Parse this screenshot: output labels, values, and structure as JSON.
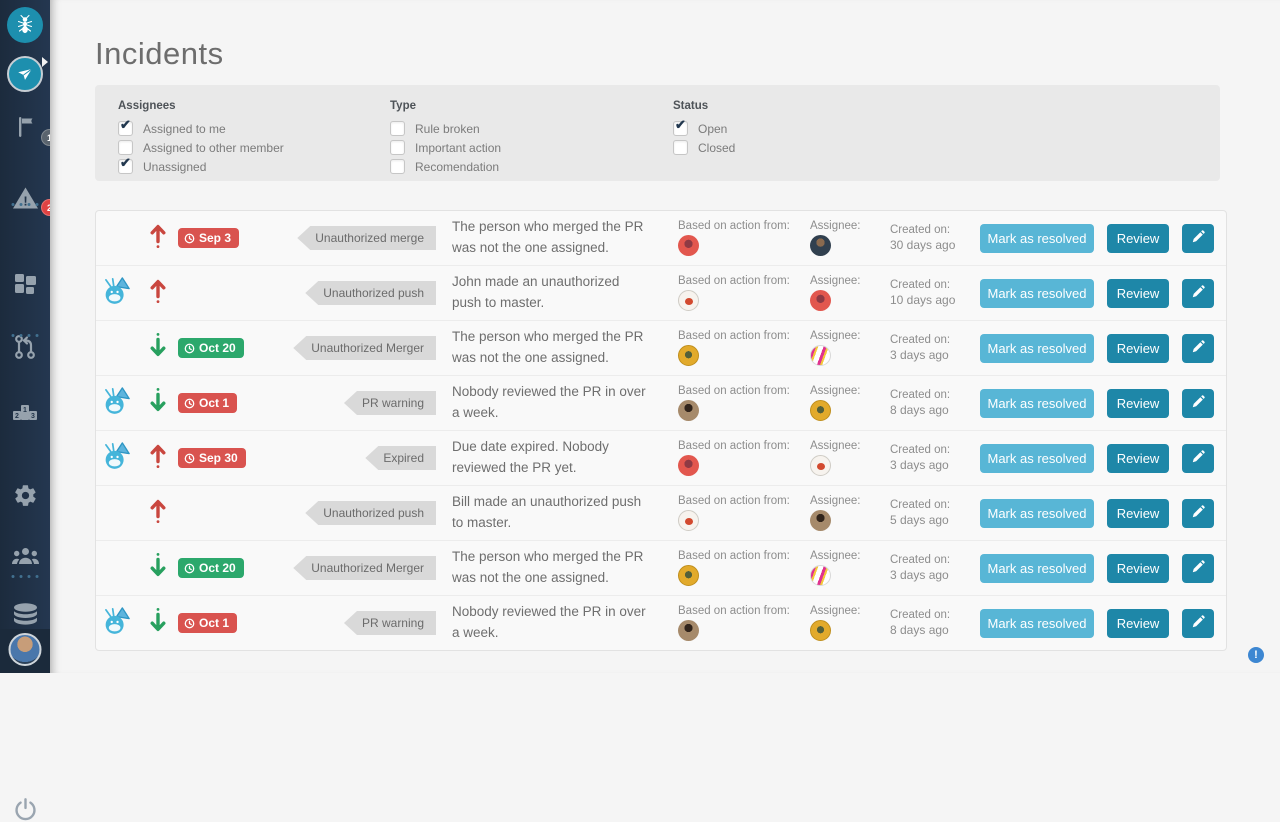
{
  "page_title": "Incidents",
  "colors": {
    "accent_teal": "#1e87a8",
    "button_light_blue": "#58b6d6",
    "badge_red": "#d9534f",
    "badge_green": "#2ca86c",
    "sidebar_bg": "#223449"
  },
  "sidebar": {
    "flag_badge": "1",
    "warning_badge": "2",
    "icons": [
      "ant-logo",
      "paper-plane-logo",
      "flag-icon",
      "warning-triangle-icon",
      "dashboard-grid-icon",
      "pull-request-icon",
      "leaderboard-icon",
      "gear-icon",
      "team-icon",
      "database-icon",
      "power-icon",
      "user-avatar"
    ]
  },
  "filters": {
    "groups": [
      {
        "title": "Assignees",
        "options": [
          {
            "label": "Assigned to me",
            "checked": true
          },
          {
            "label": "Assigned to other member",
            "checked": false
          },
          {
            "label": "Unassigned",
            "checked": true
          }
        ]
      },
      {
        "title": "Type",
        "options": [
          {
            "label": "Rule broken",
            "checked": false
          },
          {
            "label": "Important action",
            "checked": false
          },
          {
            "label": "Recomendation",
            "checked": false
          }
        ]
      },
      {
        "title": "Status",
        "options": [
          {
            "label": "Open",
            "checked": true
          },
          {
            "label": "Closed",
            "checked": false
          }
        ]
      }
    ]
  },
  "incidents": {
    "labels": {
      "based_on": "Based on action from:",
      "assignee": "Assignee:",
      "created_on": "Created on:"
    },
    "buttons": {
      "resolve": "Mark as resolved",
      "review": "Review",
      "edit_icon": "pencil-icon"
    },
    "rows": [
      {
        "mascot": false,
        "trend": "up",
        "date": "Sep 3",
        "date_color": "red",
        "tag": "Unauthorized merge",
        "description": "The person who merged the PR\nwas not the one assigned.",
        "action_avatar": "red",
        "assignee_avatar": "photo-dark",
        "created": "30 days ago"
      },
      {
        "mascot": true,
        "trend": "up",
        "date": "",
        "date_color": "",
        "tag": "Unauthorized push",
        "description": "John made an unauthorized\npush to master.",
        "action_avatar": "cream",
        "assignee_avatar": "red",
        "created": "10 days ago"
      },
      {
        "mascot": false,
        "trend": "down",
        "date": "Oct 20",
        "date_color": "green",
        "tag": "Unauthorized Merger",
        "description": "The person who merged the PR\nwas not the one assigned.",
        "action_avatar": "gold",
        "assignee_avatar": "stripes",
        "created": "3 days ago"
      },
      {
        "mascot": true,
        "trend": "down",
        "date": "Oct 1",
        "date_color": "red",
        "tag": "PR warning",
        "description": "Nobody reviewed the PR in over\na week.",
        "action_avatar": "photo-brown",
        "assignee_avatar": "gold",
        "created": "8 days ago"
      },
      {
        "mascot": true,
        "trend": "up",
        "date": "Sep 30",
        "date_color": "red",
        "tag": "Expired",
        "description": "Due date expired. Nobody\nreviewed the PR yet.",
        "action_avatar": "red",
        "assignee_avatar": "cream",
        "created": "3 days ago"
      },
      {
        "mascot": false,
        "trend": "up",
        "date": "",
        "date_color": "",
        "tag": "Unauthorized push",
        "description": "Bill made an unauthorized push\nto master.",
        "action_avatar": "cream",
        "assignee_avatar": "photo-brown",
        "created": "5 days ago"
      },
      {
        "mascot": false,
        "trend": "down",
        "date": "Oct 20",
        "date_color": "green",
        "tag": "Unauthorized Merger",
        "description": "The person who merged the PR\nwas not the one assigned.",
        "action_avatar": "gold",
        "assignee_avatar": "stripes",
        "created": "3 days ago"
      },
      {
        "mascot": true,
        "trend": "down",
        "date": "Oct 1",
        "date_color": "red",
        "tag": "PR warning",
        "description": "Nobody reviewed the PR in over\na week.",
        "action_avatar": "photo-brown",
        "assignee_avatar": "gold",
        "created": "8 days ago"
      }
    ]
  }
}
